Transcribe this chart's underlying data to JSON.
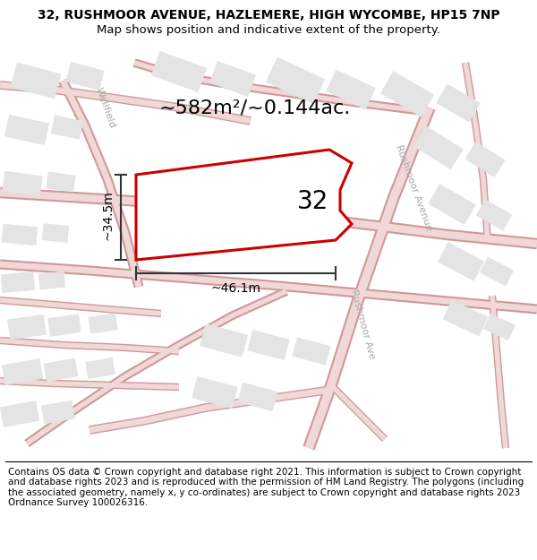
{
  "title_line1": "32, RUSHMOOR AVENUE, HAZLEMERE, HIGH WYCOMBE, HP15 7NP",
  "title_line2": "Map shows position and indicative extent of the property.",
  "area_label": "~582m²/~0.144ac.",
  "property_number": "32",
  "dim_vertical": "~34.5m",
  "dim_horizontal": "~46.1m",
  "footer_text": "Contains OS data © Crown copyright and database right 2021. This information is subject to Crown copyright and database rights 2023 and is reproduced with the permission of HM Land Registry. The polygons (including the associated geometry, namely x, y co-ordinates) are subject to Crown copyright and database rights 2023 Ordnance Survey 100026316.",
  "bg_color": "#f8f8f8",
  "road_color": "#e8b8b8",
  "road_outline_color": "#d09090",
  "building_color": "#e4e4e4",
  "building_edge": "#bbbbbb",
  "property_fill": "#ffffff",
  "property_edge": "#cc0000",
  "dim_line_color": "#333333",
  "street_label_color": "#aaaaaa",
  "title_fontsize": 10,
  "subtitle_fontsize": 9.5,
  "area_fontsize": 16,
  "number_fontsize": 20,
  "dim_fontsize": 10,
  "footer_fontsize": 7.5,
  "street_label_fontsize": 8
}
